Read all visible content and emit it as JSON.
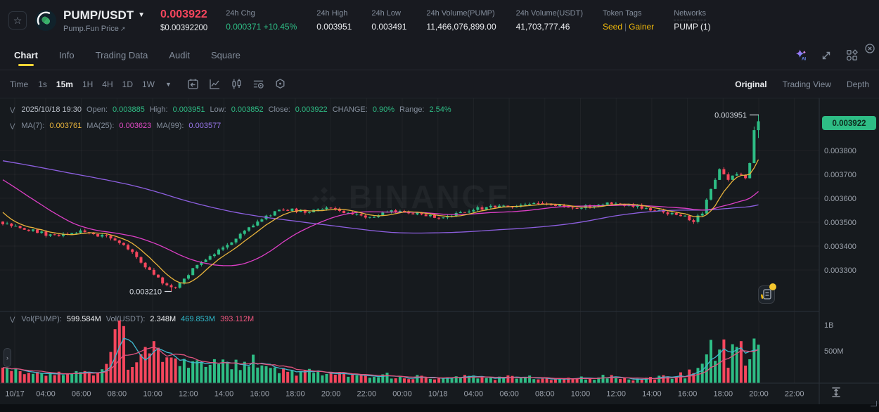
{
  "header": {
    "symbol": "PUMP/USDT",
    "subtitle": "Pump.Fun Price",
    "external_link_glyph": "↗",
    "price": "0.003922",
    "price_usd": "$0.00392200",
    "stats": [
      {
        "label": "24h Chg",
        "value": "0.000371 +10.45%",
        "color": "green"
      },
      {
        "label": "24h High",
        "value": "0.003951",
        "color": "white"
      },
      {
        "label": "24h Low",
        "value": "0.003491",
        "color": "white"
      },
      {
        "label": "24h Volume(PUMP)",
        "value": "11,466,076,899.00",
        "color": "white"
      },
      {
        "label": "24h Volume(USDT)",
        "value": "41,703,777.46",
        "color": "white"
      }
    ],
    "token_tags_label": "Token Tags",
    "token_tags": [
      "Seed",
      "Gainer"
    ],
    "networks_label": "Networks",
    "networks_value": "PUMP (1)"
  },
  "tabs": {
    "items": [
      "Chart",
      "Info",
      "Trading Data",
      "Audit",
      "Square"
    ],
    "active": "Chart"
  },
  "toolbar": {
    "time_label": "Time",
    "intervals": [
      "1s",
      "15m",
      "1H",
      "4H",
      "1D",
      "1W"
    ],
    "active_interval": "15m",
    "views": [
      "Original",
      "Trading View",
      "Depth"
    ],
    "active_view": "Original"
  },
  "ohlc": {
    "date": "2025/10/18 19:30",
    "open_label": "Open:",
    "open": "0.003885",
    "high_label": "High:",
    "high": "0.003951",
    "low_label": "Low:",
    "low": "0.003852",
    "close_label": "Close:",
    "close": "0.003922",
    "change_label": "CHANGE:",
    "change": "0.90%",
    "range_label": "Range:",
    "range": "2.54%"
  },
  "ma_row": {
    "ma7_label": "MA(7):",
    "ma7": "0.003761",
    "ma25_label": "MA(25):",
    "ma25": "0.003623",
    "ma99_label": "MA(99):",
    "ma99": "0.003577"
  },
  "volume_row": {
    "vol_pump_label": "Vol(PUMP):",
    "vol_pump": "599.584M",
    "vol_usdt_label": "Vol(USDT):",
    "vol_usdt": "2.348M",
    "vol_ma_cyan": "469.853M",
    "vol_ma_pink": "393.112M"
  },
  "axis": {
    "price_tick_labels": [
      "0.003800",
      "0.003700",
      "0.003600",
      "0.003500",
      "0.003400",
      "0.003300"
    ],
    "price_tick_values": [
      3800,
      3700,
      3600,
      3500,
      3400,
      3300
    ],
    "last_price_badge": "0.003922",
    "volume_tick_labels": [
      "1B",
      "500M"
    ],
    "time_ticks": [
      "10/17",
      "04:00",
      "06:00",
      "08:00",
      "10:00",
      "12:00",
      "14:00",
      "16:00",
      "18:00",
      "20:00",
      "22:00",
      "00:00",
      "10/18",
      "04:00",
      "06:00",
      "08:00",
      "10:00",
      "12:00",
      "14:00",
      "16:00",
      "18:00",
      "20:00",
      "22:00"
    ]
  },
  "annotations": {
    "high_marker": "0.003951",
    "low_marker": "0.003210"
  },
  "watermark_text": "BINANCE",
  "chart_data": {
    "type": "candlestick+volume",
    "symbol": "PUMP/USDT",
    "interval": "15m",
    "price_unit": "1e-6 USDT",
    "candle_count": 176,
    "visible_price_range": [
      3135,
      3995
    ],
    "high_marker": 3951,
    "low_marker": 3210,
    "last_candle": {
      "open": 3885,
      "high": 3951,
      "low": 3852,
      "close": 3922
    },
    "price_anchors": [
      [
        0,
        3495
      ],
      [
        6,
        3468
      ],
      [
        12,
        3440
      ],
      [
        18,
        3462
      ],
      [
        24,
        3438
      ],
      [
        28,
        3408
      ],
      [
        31,
        3350
      ],
      [
        34,
        3298
      ],
      [
        37,
        3248
      ],
      [
        39,
        3212
      ],
      [
        41,
        3252
      ],
      [
        44,
        3302
      ],
      [
        47,
        3342
      ],
      [
        50,
        3382
      ],
      [
        53,
        3422
      ],
      [
        57,
        3472
      ],
      [
        61,
        3522
      ],
      [
        65,
        3556
      ],
      [
        70,
        3545
      ],
      [
        75,
        3562
      ],
      [
        80,
        3536
      ],
      [
        85,
        3520
      ],
      [
        90,
        3546
      ],
      [
        95,
        3536
      ],
      [
        100,
        3522
      ],
      [
        105,
        3532
      ],
      [
        110,
        3556
      ],
      [
        115,
        3572
      ],
      [
        120,
        3566
      ],
      [
        125,
        3582
      ],
      [
        130,
        3562
      ],
      [
        135,
        3566
      ],
      [
        140,
        3582
      ],
      [
        145,
        3572
      ],
      [
        150,
        3556
      ],
      [
        154,
        3540
      ],
      [
        158,
        3524
      ],
      [
        160,
        3506
      ],
      [
        162,
        3540
      ],
      [
        164,
        3642
      ],
      [
        166,
        3716
      ],
      [
        168,
        3682
      ],
      [
        170,
        3706
      ],
      [
        172,
        3678
      ],
      [
        173,
        3742
      ],
      [
        174,
        3885
      ],
      [
        175,
        3922
      ]
    ],
    "pre_anchors": [
      [
        -99,
        3792
      ],
      [
        -40,
        3780
      ],
      [
        -20,
        3768
      ],
      [
        -10,
        3700
      ],
      [
        -5,
        3580
      ],
      [
        -2,
        3520
      ],
      [
        0,
        3495
      ]
    ],
    "volume_anchors_millions": [
      [
        0,
        190
      ],
      [
        4,
        150
      ],
      [
        8,
        120
      ],
      [
        12,
        140
      ],
      [
        16,
        120
      ],
      [
        20,
        160
      ],
      [
        24,
        220
      ],
      [
        27,
        970
      ],
      [
        29,
        260
      ],
      [
        31,
        430
      ],
      [
        33,
        560
      ],
      [
        35,
        650
      ],
      [
        37,
        380
      ],
      [
        40,
        300
      ],
      [
        43,
        280
      ],
      [
        46,
        240
      ],
      [
        49,
        280
      ],
      [
        52,
        260
      ],
      [
        55,
        300
      ],
      [
        58,
        320
      ],
      [
        61,
        280
      ],
      [
        64,
        200
      ],
      [
        68,
        150
      ],
      [
        72,
        170
      ],
      [
        76,
        130
      ],
      [
        80,
        110
      ],
      [
        85,
        100
      ],
      [
        90,
        120
      ],
      [
        95,
        90
      ],
      [
        100,
        80
      ],
      [
        105,
        95
      ],
      [
        110,
        105
      ],
      [
        115,
        85
      ],
      [
        120,
        95
      ],
      [
        125,
        80
      ],
      [
        130,
        85
      ],
      [
        135,
        75
      ],
      [
        140,
        95
      ],
      [
        145,
        70
      ],
      [
        150,
        80
      ],
      [
        155,
        95
      ],
      [
        158,
        130
      ],
      [
        160,
        200
      ],
      [
        162,
        320
      ],
      [
        164,
        480
      ],
      [
        166,
        520
      ],
      [
        168,
        430
      ],
      [
        170,
        560
      ],
      [
        172,
        470
      ],
      [
        174,
        690
      ],
      [
        175,
        600
      ]
    ],
    "volume_spikes": [
      [
        27,
        970
      ],
      [
        33,
        560
      ],
      [
        35,
        650
      ],
      [
        166,
        520
      ],
      [
        170,
        560
      ],
      [
        174,
        690
      ]
    ],
    "colors": {
      "up": "#2ebd85",
      "down": "#f6465d",
      "ma7": "#e8b33c",
      "ma25": "#dd3fc6",
      "ma99": "#8d5fe0",
      "vol_ma_cyan": "#3fb8cf",
      "vol_ma_pink": "#e0537e",
      "badge_bg": "#2ebd85",
      "badge_text": "#0e2a1d",
      "grid": "rgba(255,255,255,0.045)",
      "axis_text": "#9aa0aa",
      "border": "#2b3139"
    }
  }
}
